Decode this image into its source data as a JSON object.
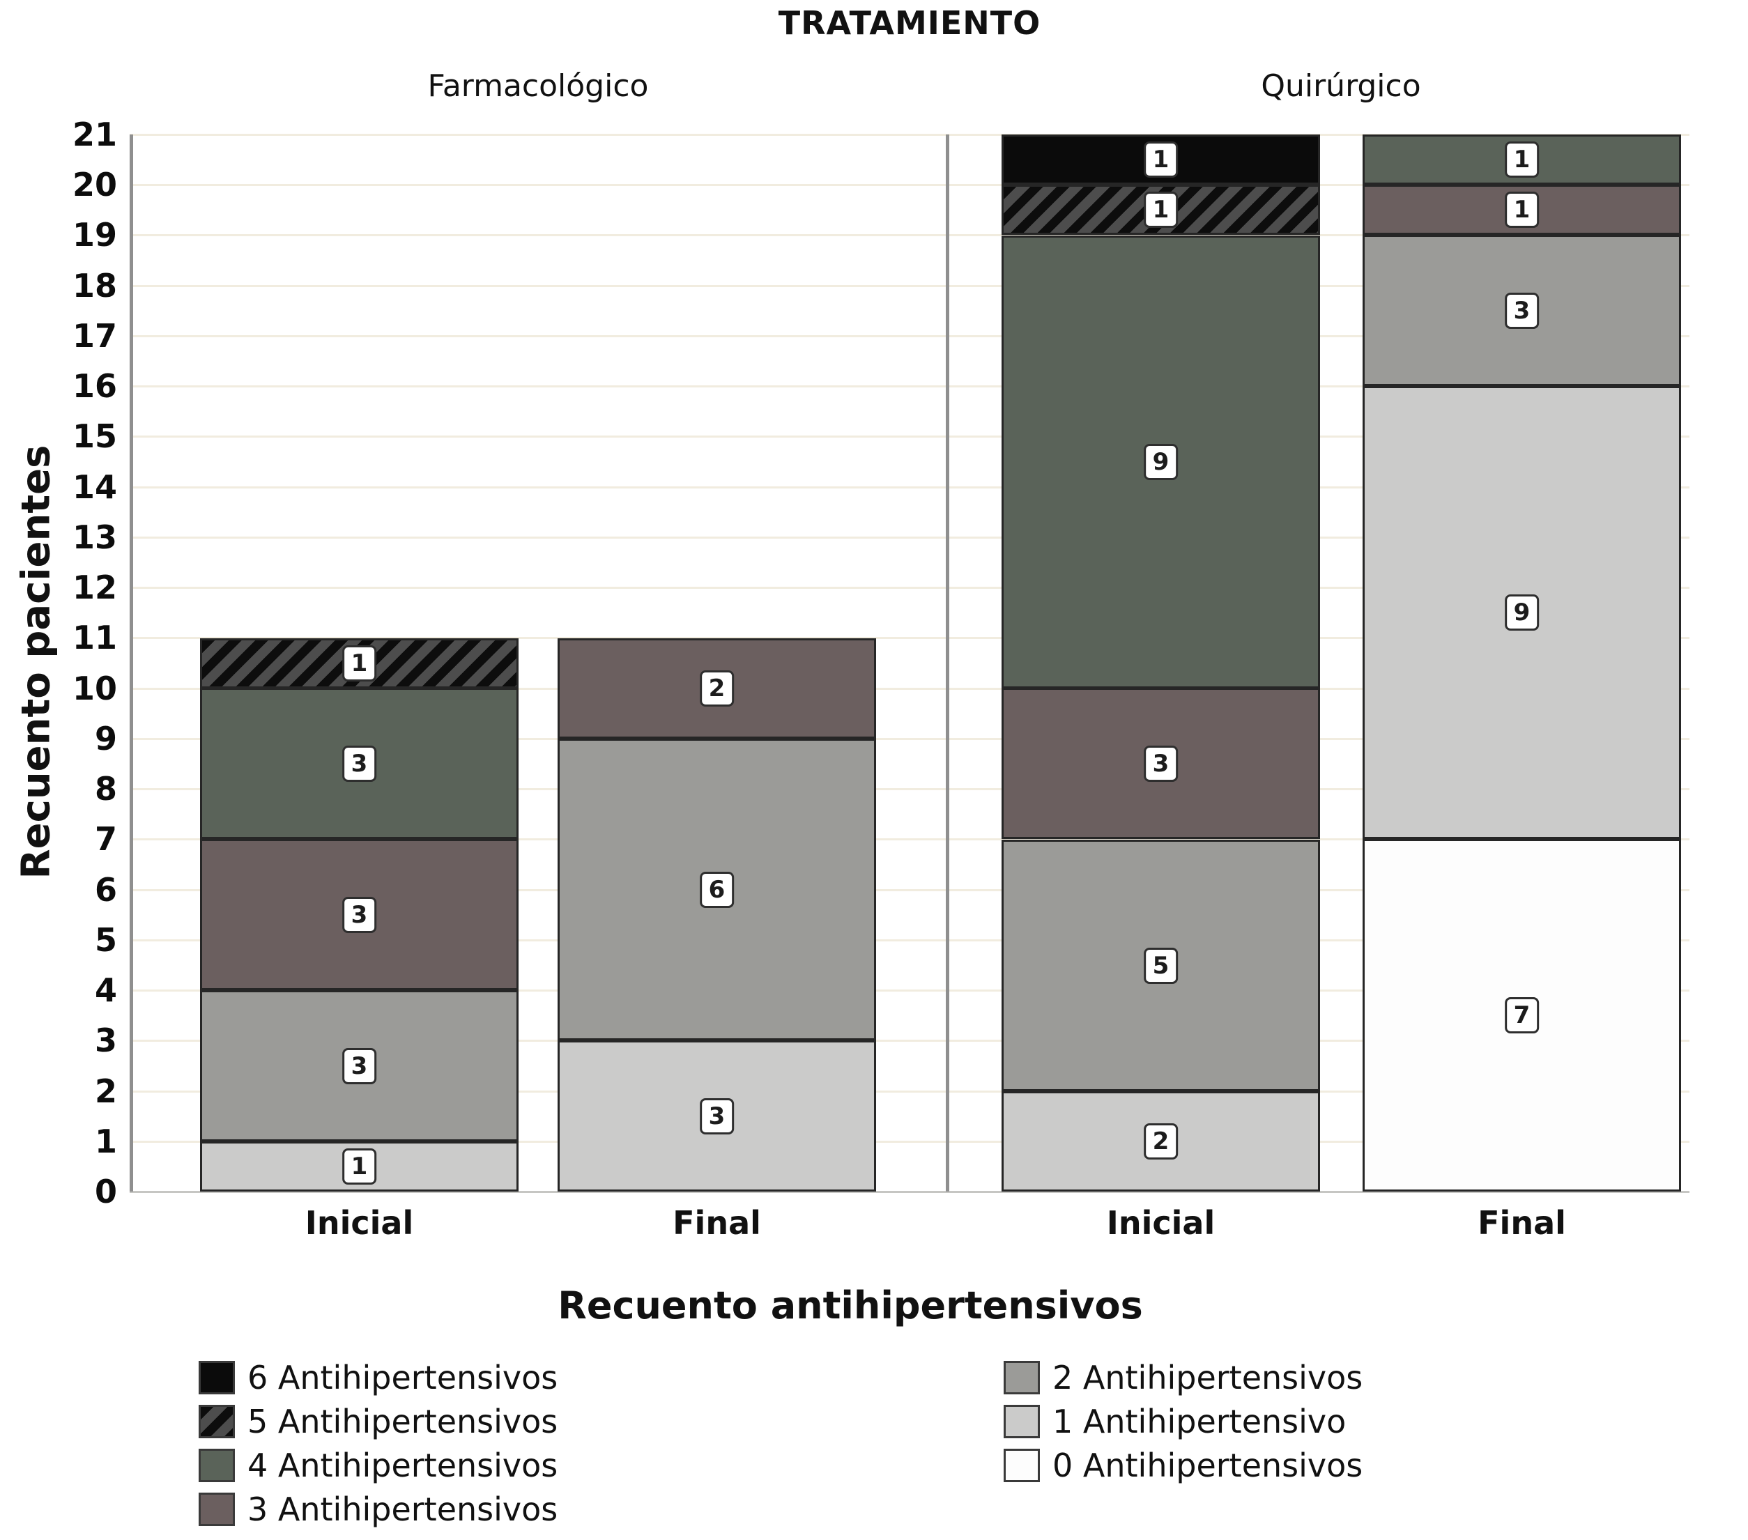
{
  "chart_data": {
    "type": "bar",
    "stacked": true,
    "title": "TRATAMIENTO",
    "ylabel": "Recuento pacientes",
    "ylim": [
      0,
      21
    ],
    "yticks": [
      0,
      1,
      2,
      3,
      4,
      5,
      6,
      7,
      8,
      9,
      10,
      11,
      12,
      13,
      14,
      15,
      16,
      17,
      18,
      19,
      20,
      21
    ],
    "grid": "horizontal",
    "legend_title": "Recuento antihipertensivos",
    "legend_position": "bottom",
    "panels": [
      {
        "label": "Farmacológico",
        "bars": [
          {
            "category": "Inicial",
            "total": 11,
            "segments": [
              {
                "series": "1 Antihipertensivo",
                "value": 1
              },
              {
                "series": "2 Antihipertensivos",
                "value": 3
              },
              {
                "series": "3 Antihipertensivos",
                "value": 3
              },
              {
                "series": "4 Antihipertensivos",
                "value": 3
              },
              {
                "series": "5 Antihipertensivos",
                "value": 1
              }
            ]
          },
          {
            "category": "Final",
            "total": 11,
            "segments": [
              {
                "series": "1 Antihipertensivo",
                "value": 3
              },
              {
                "series": "2 Antihipertensivos",
                "value": 6
              },
              {
                "series": "3 Antihipertensivos",
                "value": 2
              }
            ]
          }
        ]
      },
      {
        "label": "Quirúrgico",
        "bars": [
          {
            "category": "Inicial",
            "total": 21,
            "segments": [
              {
                "series": "1 Antihipertensivo",
                "value": 2
              },
              {
                "series": "2 Antihipertensivos",
                "value": 5
              },
              {
                "series": "3 Antihipertensivos",
                "value": 3
              },
              {
                "series": "4 Antihipertensivos",
                "value": 9
              },
              {
                "series": "5 Antihipertensivos",
                "value": 1
              },
              {
                "series": "6 Antihipertensivos",
                "value": 1
              }
            ]
          },
          {
            "category": "Final",
            "total": 21,
            "segments": [
              {
                "series": "0 Antihipertensivos",
                "value": 7
              },
              {
                "series": "1 Antihipertensivo",
                "value": 9
              },
              {
                "series": "2 Antihipertensivos",
                "value": 3
              },
              {
                "series": "3 Antihipertensivos",
                "value": 1
              },
              {
                "series": "4 Antihipertensivos",
                "value": 1
              }
            ]
          }
        ]
      }
    ],
    "legend": [
      {
        "label": "6 Antihipertensivos",
        "color": "#0b0b0b",
        "pattern": "solid"
      },
      {
        "label": "5 Antihipertensivos",
        "color": "#4d4d4d",
        "pattern": "hatch"
      },
      {
        "label": "4 Antihipertensivos",
        "color": "#5a6359",
        "pattern": "solid"
      },
      {
        "label": "3 Antihipertensivos",
        "color": "#6b5f5f",
        "pattern": "solid"
      },
      {
        "label": "2 Antihipertensivos",
        "color": "#9b9b98",
        "pattern": "solid"
      },
      {
        "label": "1 Antihipertensivo",
        "color": "#cbcbca",
        "pattern": "solid"
      },
      {
        "label": "0 Antihipertensivos",
        "color": "#fdfdfd",
        "pattern": "solid"
      }
    ],
    "colors": {
      "hatch_stripe": "#0d0d0d",
      "hatch_bg": "#4d4d4d",
      "gridline": "#f1ecdf",
      "axis_line": "#8f8f8f",
      "segment_border": "#262626"
    }
  }
}
